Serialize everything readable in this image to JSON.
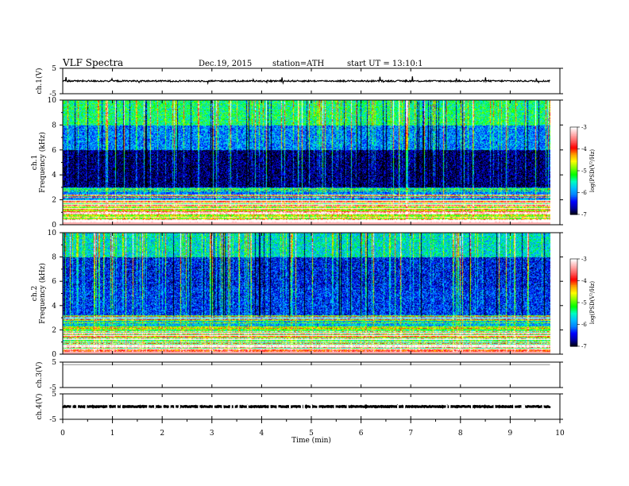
{
  "header": {
    "title": "VLF  Spectra",
    "date": "Dec.19, 2015",
    "station": "station=ATH",
    "start": "start  UT  =    13:10:1"
  },
  "colors": {
    "colormap": [
      "#000000",
      "#0000a0",
      "#0000ff",
      "#0080ff",
      "#00c0ff",
      "#00ffc0",
      "#00ff00",
      "#80ff00",
      "#ffff00",
      "#ffa000",
      "#ff0000",
      "#ff6060",
      "#ffb0b0",
      "#ffffff"
    ],
    "trace": "#000000",
    "ch3_trace": "#9a9a9a"
  },
  "chart_data": [
    {
      "type": "line",
      "id": "ch1-waveform",
      "ylabel": "ch.1(V)",
      "ylim": [
        -5,
        5
      ],
      "yticks": [
        "5",
        "-5"
      ],
      "baseline": 0,
      "noise_amplitude": 0.6,
      "note_values": "quasi-flat trace near 0 V with small spikes"
    },
    {
      "type": "heatmap",
      "id": "ch1-spectrogram",
      "ylabel": "ch.1\nFrequency  (kHz)",
      "ylim": [
        0,
        10
      ],
      "yticks": [
        "0",
        "2",
        "4",
        "6",
        "8",
        "10"
      ],
      "colorbar": {
        "label": "log(PSD(V²/Hz)",
        "range": [
          -7,
          -3
        ],
        "ticks": [
          "-3",
          "-4",
          "-5",
          "-6",
          "-7"
        ]
      },
      "bands_khz": [
        {
          "from": 0,
          "to": 1.5,
          "logpsd": -4.8
        },
        {
          "from": 1.5,
          "to": 2.0,
          "logpsd": -5.8
        },
        {
          "from": 2.0,
          "to": 3.0,
          "logpsd": -6.0
        },
        {
          "from": 3.0,
          "to": 6.0,
          "logpsd": -6.8
        },
        {
          "from": 6.0,
          "to": 8.0,
          "logpsd": -6.0
        },
        {
          "from": 8.0,
          "to": 10.0,
          "logpsd": -5.3
        }
      ]
    },
    {
      "type": "heatmap",
      "id": "ch2-spectrogram",
      "ylabel": "ch.2\nFrequency  (kHz)",
      "ylim": [
        0,
        10
      ],
      "yticks": [
        "0",
        "2",
        "4",
        "6",
        "8",
        "10"
      ],
      "colorbar": {
        "label": "log(PSD(V²/Hz)",
        "range": [
          -7,
          -3
        ],
        "ticks": [
          "-3",
          "-4",
          "-5",
          "-6",
          "-7"
        ]
      },
      "bands_khz": [
        {
          "from": 0,
          "to": 2.0,
          "logpsd": -5.2
        },
        {
          "from": 2.0,
          "to": 3.2,
          "logpsd": -5.8
        },
        {
          "from": 3.2,
          "to": 5.5,
          "logpsd": -6.3
        },
        {
          "from": 5.5,
          "to": 8.0,
          "logpsd": -6.4
        },
        {
          "from": 8.0,
          "to": 10.0,
          "logpsd": -5.6
        }
      ]
    },
    {
      "type": "line",
      "id": "ch3-waveform",
      "ylabel": "ch.3(V)",
      "ylim": [
        -5,
        5
      ],
      "yticks": [
        "5",
        "-5"
      ],
      "baseline": 4,
      "noise_amplitude": 0
    },
    {
      "type": "line",
      "id": "ch4-waveform",
      "ylabel": "ch.4(V)",
      "ylim": [
        -5,
        5
      ],
      "yticks": [
        "5",
        "-5"
      ],
      "baseline": 0,
      "noise_amplitude": 0.3
    }
  ],
  "xaxis": {
    "label": "Time  (min)",
    "xlim": [
      0,
      10
    ],
    "ticks": [
      "0",
      "1",
      "2",
      "3",
      "4",
      "5",
      "6",
      "7",
      "8",
      "9",
      "10"
    ],
    "data_end": 9.8
  }
}
